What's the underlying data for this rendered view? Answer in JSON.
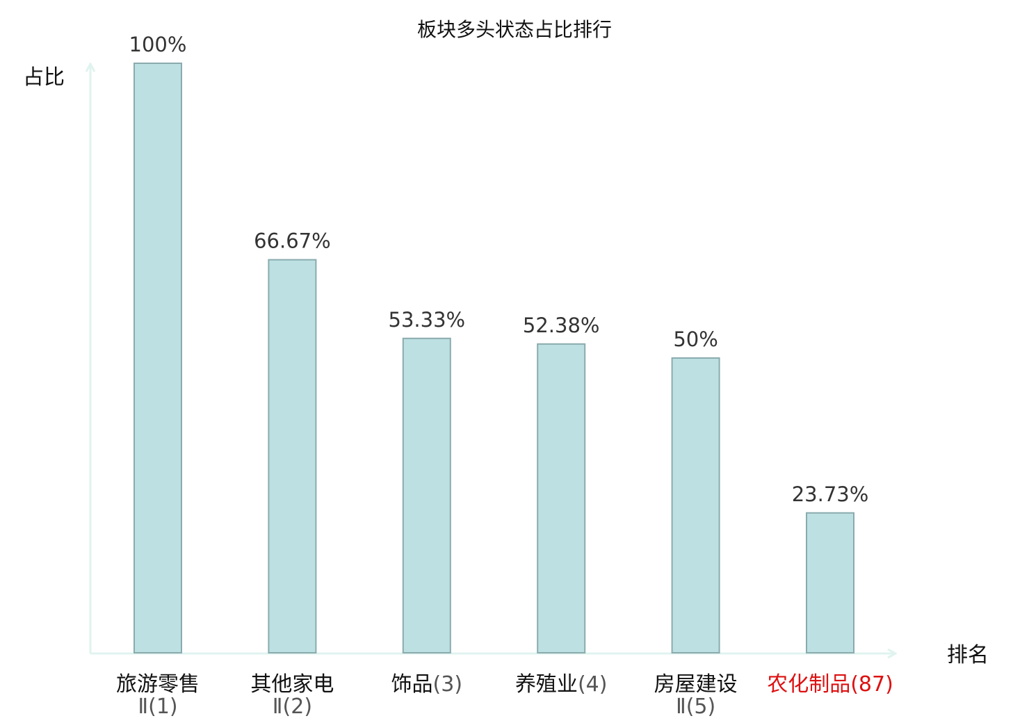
{
  "colors": {
    "bar_fill": "#bde0e3",
    "bar_stroke": "#8aabad",
    "axis": "#e0f3ef",
    "text": "#333333",
    "highlight": "#dd1111"
  },
  "chart_data": {
    "type": "bar",
    "title": "板块多头状态占比排行",
    "xlabel": "排名",
    "ylabel": "占比",
    "ylim": [
      0,
      100
    ],
    "grid": false,
    "categories": [
      {
        "name": "旅游零售",
        "name2": "Ⅱ",
        "rank": "(1)",
        "highlight": false
      },
      {
        "name": "其他家电",
        "name2": "Ⅱ",
        "rank": "(2)",
        "highlight": false
      },
      {
        "name": "饰品",
        "name2": "",
        "rank": "(3)",
        "highlight": false
      },
      {
        "name": "养殖业",
        "name2": "",
        "rank": "(4)",
        "highlight": false
      },
      {
        "name": "房屋建设",
        "name2": "Ⅱ",
        "rank": "(5)",
        "highlight": false
      },
      {
        "name": "农化制品",
        "name2": "",
        "rank": "(87)",
        "highlight": true
      }
    ],
    "values": [
      100,
      66.67,
      53.33,
      52.38,
      50,
      23.73
    ],
    "value_labels": [
      "100%",
      "66.67%",
      "53.33%",
      "52.38%",
      "50%",
      "23.73%"
    ]
  }
}
